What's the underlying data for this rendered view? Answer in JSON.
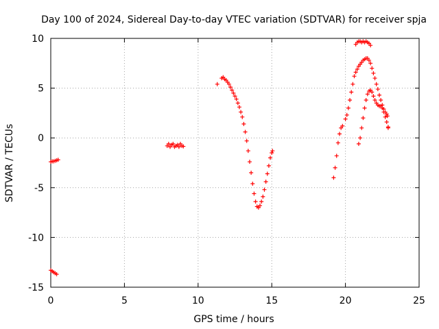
{
  "chart_data": {
    "type": "scatter",
    "title": "Day 100 of 2024, Sidereal Day-to-day VTEC variation (SDTVAR) for receiver spja",
    "xlabel": "GPS time / hours",
    "ylabel": "SDTVAR / TECUs",
    "xlim": [
      0,
      25
    ],
    "ylim": [
      -15,
      10
    ],
    "x_ticks": [
      0,
      5,
      10,
      15,
      20,
      25
    ],
    "y_ticks": [
      -15,
      -10,
      -5,
      0,
      5,
      10
    ],
    "x_tick_labels": [
      "0",
      "5",
      "10",
      "15",
      "20",
      "25"
    ],
    "y_tick_labels": [
      "-15",
      "-10",
      "-5",
      "0",
      "5",
      "10"
    ],
    "grid": true,
    "marker": "+",
    "color": "#ff0000",
    "points": [
      [
        0.0,
        -2.4
      ],
      [
        0.1,
        -2.35
      ],
      [
        0.2,
        -2.35
      ],
      [
        0.3,
        -2.3
      ],
      [
        0.4,
        -2.25
      ],
      [
        0.5,
        -2.2
      ],
      [
        0.0,
        -13.3
      ],
      [
        0.1,
        -13.4
      ],
      [
        0.2,
        -13.5
      ],
      [
        0.3,
        -13.6
      ],
      [
        0.4,
        -13.7
      ],
      [
        7.9,
        -0.8
      ],
      [
        8.0,
        -0.6
      ],
      [
        8.1,
        -0.9
      ],
      [
        8.2,
        -0.7
      ],
      [
        8.3,
        -0.6
      ],
      [
        8.4,
        -0.9
      ],
      [
        8.5,
        -0.8
      ],
      [
        8.6,
        -0.7
      ],
      [
        8.7,
        -0.9
      ],
      [
        8.8,
        -0.6
      ],
      [
        8.9,
        -0.8
      ],
      [
        9.0,
        -0.85
      ],
      [
        11.3,
        5.4
      ],
      [
        11.6,
        6.0
      ],
      [
        11.7,
        6.1
      ],
      [
        11.8,
        5.9
      ],
      [
        11.9,
        5.8
      ],
      [
        12.0,
        5.6
      ],
      [
        12.1,
        5.4
      ],
      [
        12.2,
        5.1
      ],
      [
        12.3,
        4.8
      ],
      [
        12.4,
        4.5
      ],
      [
        12.5,
        4.2
      ],
      [
        12.6,
        3.9
      ],
      [
        12.7,
        3.5
      ],
      [
        12.8,
        3.1
      ],
      [
        12.9,
        2.6
      ],
      [
        13.0,
        2.1
      ],
      [
        13.1,
        1.4
      ],
      [
        13.2,
        0.6
      ],
      [
        13.3,
        -0.3
      ],
      [
        13.4,
        -1.3
      ],
      [
        13.5,
        -2.4
      ],
      [
        13.6,
        -3.5
      ],
      [
        13.7,
        -4.6
      ],
      [
        13.8,
        -5.6
      ],
      [
        13.9,
        -6.4
      ],
      [
        14.0,
        -6.9
      ],
      [
        14.1,
        -7.0
      ],
      [
        14.2,
        -6.8
      ],
      [
        14.3,
        -6.4
      ],
      [
        14.4,
        -5.9
      ],
      [
        14.5,
        -5.2
      ],
      [
        14.6,
        -4.4
      ],
      [
        14.7,
        -3.6
      ],
      [
        14.8,
        -2.8
      ],
      [
        14.9,
        -2.0
      ],
      [
        15.0,
        -1.5
      ],
      [
        15.05,
        -1.3
      ],
      [
        19.2,
        -4.0
      ],
      [
        19.3,
        -3.0
      ],
      [
        19.4,
        -1.8
      ],
      [
        19.5,
        -0.5
      ],
      [
        19.6,
        0.4
      ],
      [
        19.7,
        1.0
      ],
      [
        19.8,
        1.2
      ],
      [
        20.0,
        1.9
      ],
      [
        20.1,
        2.3
      ],
      [
        20.2,
        3.0
      ],
      [
        20.3,
        3.8
      ],
      [
        20.4,
        4.6
      ],
      [
        20.5,
        5.4
      ],
      [
        20.6,
        6.2
      ],
      [
        20.7,
        6.6
      ],
      [
        20.8,
        6.9
      ],
      [
        20.9,
        7.2
      ],
      [
        21.0,
        7.4
      ],
      [
        21.1,
        7.6
      ],
      [
        21.2,
        7.8
      ],
      [
        21.3,
        7.9
      ],
      [
        21.4,
        8.0
      ],
      [
        21.5,
        8.0
      ],
      [
        21.6,
        7.8
      ],
      [
        21.7,
        7.5
      ],
      [
        21.8,
        7.0
      ],
      [
        21.9,
        6.5
      ],
      [
        22.0,
        6.0
      ],
      [
        22.1,
        5.4
      ],
      [
        22.2,
        4.9
      ],
      [
        22.3,
        4.3
      ],
      [
        22.4,
        3.8
      ],
      [
        22.5,
        3.3
      ],
      [
        22.6,
        2.9
      ],
      [
        22.7,
        2.6
      ],
      [
        22.8,
        2.4
      ],
      [
        22.85,
        2.2
      ],
      [
        20.7,
        9.4
      ],
      [
        20.8,
        9.6
      ],
      [
        20.9,
        9.7
      ],
      [
        21.0,
        9.7
      ],
      [
        21.1,
        9.6
      ],
      [
        21.2,
        9.7
      ],
      [
        21.3,
        9.6
      ],
      [
        21.4,
        9.7
      ],
      [
        21.5,
        9.6
      ],
      [
        21.6,
        9.5
      ],
      [
        21.7,
        9.3
      ],
      [
        20.9,
        -0.6
      ],
      [
        21.0,
        0.0
      ],
      [
        21.1,
        1.0
      ],
      [
        21.2,
        2.0
      ],
      [
        21.3,
        3.0
      ],
      [
        21.4,
        3.8
      ],
      [
        21.5,
        4.4
      ],
      [
        21.6,
        4.7
      ],
      [
        21.7,
        4.8
      ],
      [
        21.8,
        4.6
      ],
      [
        21.9,
        4.2
      ],
      [
        22.0,
        3.8
      ],
      [
        22.1,
        3.5
      ],
      [
        22.2,
        3.3
      ],
      [
        22.3,
        3.2
      ],
      [
        22.4,
        3.2
      ],
      [
        22.5,
        3.0
      ],
      [
        22.6,
        2.6
      ],
      [
        22.7,
        2.1
      ],
      [
        22.8,
        1.6
      ],
      [
        22.9,
        1.1
      ],
      [
        22.9,
        1.0
      ]
    ]
  }
}
